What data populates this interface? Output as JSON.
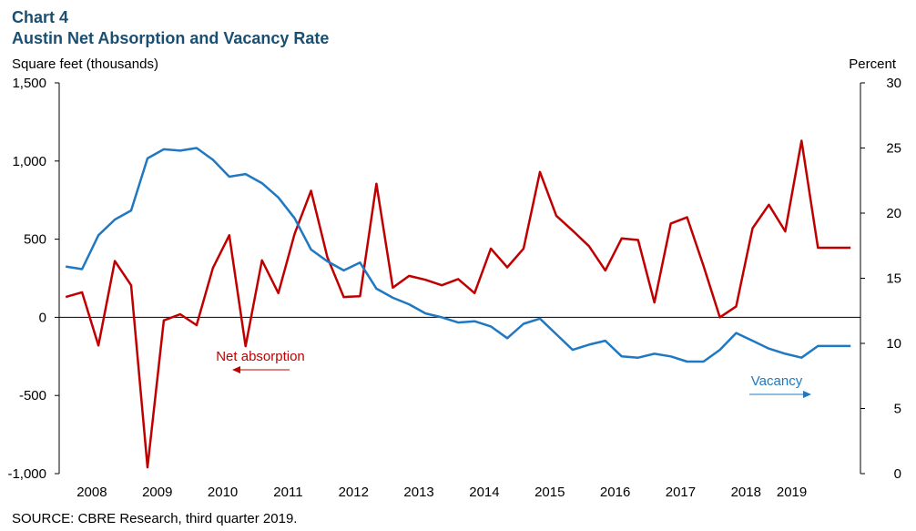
{
  "chart_data": {
    "type": "line",
    "title": "Chart 4",
    "subtitle": "Austin Net Absorption and Vacancy Rate",
    "ylabel_left": "Square feet (thousands)",
    "ylabel_right": "Percent",
    "source": "SOURCE: CBRE Research, third quarter 2019.",
    "x_start": 2007.5,
    "x_end": 2019.75,
    "ylim_left": [
      -1000,
      1500
    ],
    "ylim_right": [
      0,
      30
    ],
    "yticks_left": [
      {
        "value": -1000,
        "label": "-1,000"
      },
      {
        "value": -500,
        "label": "-500"
      },
      {
        "value": 0,
        "label": "0"
      },
      {
        "value": 500,
        "label": "500"
      },
      {
        "value": 1000,
        "label": "1,000"
      },
      {
        "value": 1500,
        "label": "1,500"
      }
    ],
    "yticks_right": [
      {
        "value": 0,
        "label": "0"
      },
      {
        "value": 5,
        "label": "5"
      },
      {
        "value": 10,
        "label": "10"
      },
      {
        "value": 15,
        "label": "15"
      },
      {
        "value": 20,
        "label": "20"
      },
      {
        "value": 25,
        "label": "25"
      },
      {
        "value": 30,
        "label": "30"
      }
    ],
    "xtick_labels": [
      {
        "x": 2008.0,
        "label": "2008"
      },
      {
        "x": 2009.0,
        "label": "2009"
      },
      {
        "x": 2010.0,
        "label": "2010"
      },
      {
        "x": 2011.0,
        "label": "2011"
      },
      {
        "x": 2012.0,
        "label": "2012"
      },
      {
        "x": 2013.0,
        "label": "2013"
      },
      {
        "x": 2014.0,
        "label": "2014"
      },
      {
        "x": 2015.0,
        "label": "2015"
      },
      {
        "x": 2016.0,
        "label": "2016"
      },
      {
        "x": 2017.0,
        "label": "2017"
      },
      {
        "x": 2018.0,
        "label": "2018"
      },
      {
        "x": 2018.7,
        "label": "2019"
      }
    ],
    "x": [
      2007.6,
      2007.85,
      2008.1,
      2008.35,
      2008.6,
      2008.85,
      2009.1,
      2009.35,
      2009.6,
      2009.85,
      2010.1,
      2010.35,
      2010.6,
      2010.85,
      2011.1,
      2011.35,
      2011.6,
      2011.85,
      2012.1,
      2012.35,
      2012.6,
      2012.85,
      2013.1,
      2013.35,
      2013.6,
      2013.85,
      2014.1,
      2014.35,
      2014.6,
      2014.85,
      2015.1,
      2015.35,
      2015.6,
      2015.85,
      2016.1,
      2016.35,
      2016.6,
      2016.85,
      2017.1,
      2017.35,
      2017.6,
      2017.85,
      2018.1,
      2018.35,
      2018.6,
      2018.85,
      2019.1,
      2019.35,
      2019.6
    ],
    "series": [
      {
        "name": "Net absorption",
        "axis": "left",
        "color": "#c00000",
        "values": [
          130,
          160,
          -180,
          360,
          205,
          -960,
          -20,
          20,
          -50,
          315,
          525,
          -185,
          365,
          155,
          535,
          810,
          385,
          130,
          135,
          855,
          190,
          265,
          240,
          205,
          245,
          155,
          440,
          320,
          440,
          930,
          650,
          555,
          455,
          300,
          505,
          495,
          95,
          600,
          640,
          330,
          0,
          70,
          570,
          720,
          550,
          1130,
          445,
          445,
          445
        ]
      },
      {
        "name": "Vacancy",
        "axis": "right",
        "color": "#1f78c1",
        "values": [
          15.9,
          15.7,
          18.3,
          19.5,
          20.2,
          24.2,
          24.9,
          24.8,
          25.0,
          24.1,
          22.8,
          23.0,
          22.3,
          21.2,
          19.6,
          17.2,
          16.3,
          15.6,
          16.2,
          14.2,
          13.5,
          13.0,
          12.3,
          12.0,
          11.6,
          11.7,
          11.3,
          10.4,
          11.5,
          11.9,
          10.7,
          9.5,
          9.9,
          10.2,
          9.0,
          8.9,
          9.2,
          9.0,
          8.6,
          8.6,
          9.5,
          10.8,
          10.2,
          9.6,
          9.2,
          8.9,
          9.8,
          9.8,
          9.8
        ]
      }
    ],
    "annotations": [
      {
        "label": "Net absorption",
        "series": "Net absorption",
        "arrow": "left"
      },
      {
        "label": "Vacancy",
        "series": "Vacancy",
        "arrow": "right"
      }
    ],
    "grid": false,
    "legend": "inline annotations"
  }
}
